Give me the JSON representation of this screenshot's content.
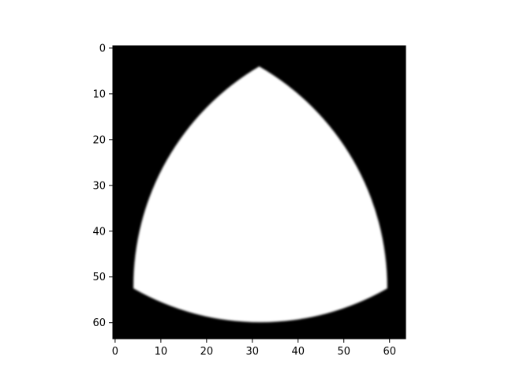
{
  "chart_data": {
    "type": "heatmap",
    "colormap": "gray",
    "background_color": "#000000",
    "shape_color": "#ffffff",
    "image_size": [
      64,
      64
    ],
    "xlim": [
      -0.5,
      63.5
    ],
    "ylim": [
      63.5,
      -0.5
    ],
    "y_inverted": true,
    "grid": false,
    "legend": "none",
    "x_ticks": [
      0,
      10,
      20,
      30,
      40,
      50,
      60
    ],
    "y_ticks": [
      0,
      10,
      20,
      30,
      40,
      50,
      60
    ],
    "x_tick_labels": [
      "0",
      "10",
      "20",
      "30",
      "40",
      "50",
      "60"
    ],
    "y_tick_labels": [
      "0",
      "10",
      "20",
      "30",
      "40",
      "50",
      "60"
    ],
    "shape": "reuleaux-triangle",
    "shape_vertices": [
      {
        "x": 31.5,
        "y": 4
      },
      {
        "x": 4,
        "y": 52.5
      },
      {
        "x": 59.5,
        "y": 52.5
      }
    ],
    "title": "",
    "xlabel": "",
    "ylabel": ""
  }
}
